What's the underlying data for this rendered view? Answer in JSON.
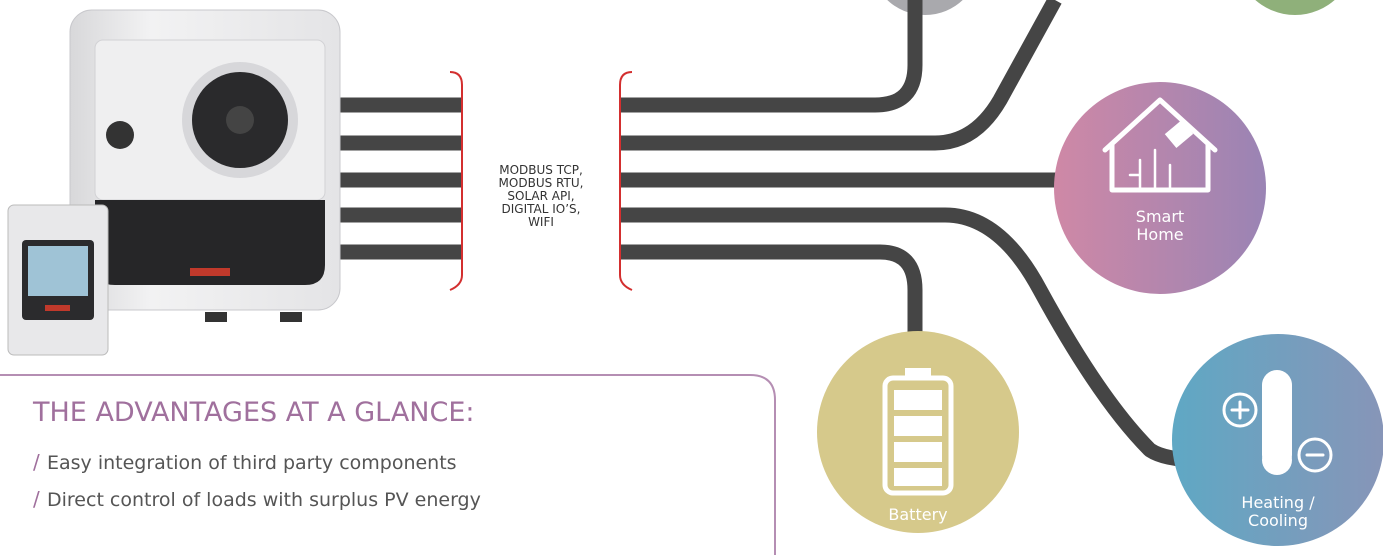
{
  "protocols": [
    "MODBUS TCP,",
    "MODBUS RTU,",
    "SOLAR API,",
    "DIGITAL IO’S,",
    "WIFI"
  ],
  "nodes": {
    "smart_home": {
      "lines": [
        "Smart",
        "Home"
      ]
    },
    "battery": {
      "lines": [
        "Battery"
      ]
    },
    "heating": {
      "lines": [
        "Heating /",
        "Cooling"
      ]
    }
  },
  "advantages": {
    "title": "THE ADVANTAGES AT A GLANCE:",
    "bullet": "/",
    "items": [
      "Easy integration of third party components",
      "Direct control of loads with surplus PV energy"
    ]
  }
}
